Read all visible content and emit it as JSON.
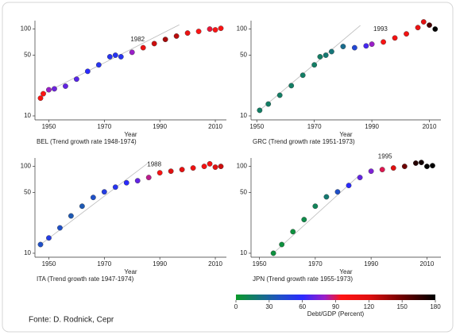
{
  "chart_data": [
    {
      "type": "scatter",
      "caption": "BEL (Trend growth rate 1948-1974)",
      "xlabel": "Year",
      "annotation_year": 1982,
      "log_y": true,
      "xlim": [
        1945,
        2014
      ],
      "xticks": [
        1950,
        1970,
        1990,
        2010
      ],
      "ylim": [
        9,
        125
      ],
      "yticks": [
        10,
        50,
        100
      ],
      "x": [
        1947,
        1948,
        1950,
        1952,
        1956,
        1960,
        1964,
        1968,
        1972,
        1974,
        1976,
        1980,
        1984,
        1988,
        1992,
        1996,
        2000,
        2004,
        2008,
        2010,
        2012
      ],
      "values": [
        16,
        18,
        20,
        20.5,
        22,
        26.5,
        32.6,
        38.7,
        48,
        50,
        48,
        54,
        61,
        68,
        76,
        83,
        90,
        94,
        100,
        98,
        102
      ],
      "debt": [
        100,
        95,
        80,
        72,
        70,
        68,
        60,
        55,
        55,
        55,
        55,
        80,
        110,
        125,
        135,
        130,
        110,
        95,
        92,
        97,
        100
      ],
      "trend": {
        "x": [
          1948,
          1997
        ],
        "values": [
          18,
          112
        ],
        "color": "#bbbbbb"
      }
    },
    {
      "type": "scatter",
      "caption": "GRC (Trend growth rate 1951-1973)",
      "xlabel": "Year",
      "annotation_year": 1993,
      "log_y": true,
      "xlim": [
        1948,
        2014
      ],
      "xticks": [
        1950,
        1970,
        1990,
        2010
      ],
      "ylim": [
        9,
        125
      ],
      "yticks": [
        10,
        50,
        100
      ],
      "x": [
        1951,
        1954,
        1958,
        1962,
        1966,
        1970,
        1972,
        1974,
        1976,
        1980,
        1984,
        1988,
        1990,
        1994,
        1998,
        2002,
        2006,
        2008,
        2010,
        2012
      ],
      "values": [
        11.6,
        13.7,
        17.3,
        22.3,
        29.4,
        38.7,
        48,
        50,
        55,
        63,
        61,
        64,
        67,
        71,
        79,
        88,
        104,
        121,
        111,
        100
      ],
      "debt": [
        15,
        15,
        15,
        15,
        15,
        15,
        15,
        18,
        20,
        25,
        45,
        65,
        80,
        100,
        105,
        105,
        110,
        115,
        160,
        180
      ],
      "trend": {
        "x": [
          1951,
          1986
        ],
        "values": [
          11.6,
          110
        ],
        "color": "#bbbbbb"
      }
    },
    {
      "type": "scatter",
      "caption": "ITA (Trend growth rate 1947-1974)",
      "xlabel": "Year",
      "annotation_year": 1988,
      "log_y": true,
      "xlim": [
        1945,
        2014
      ],
      "xticks": [
        1950,
        1970,
        1990,
        2010
      ],
      "ylim": [
        9,
        125
      ],
      "yticks": [
        10,
        50,
        100
      ],
      "x": [
        1947,
        1950,
        1954,
        1958,
        1962,
        1966,
        1970,
        1974,
        1978,
        1982,
        1986,
        1990,
        1994,
        1998,
        2002,
        2006,
        2008,
        2010,
        2012
      ],
      "values": [
        12.6,
        15,
        19.6,
        26.9,
        34.8,
        43.9,
        50.9,
        57.7,
        64.8,
        68.4,
        74.5,
        84.4,
        88,
        91.9,
        95.9,
        100,
        107,
        98,
        100
      ],
      "debt": [
        40,
        50,
        40,
        35,
        35,
        40,
        50,
        55,
        60,
        70,
        85,
        100,
        120,
        115,
        108,
        105,
        105,
        118,
        125
      ],
      "trend": {
        "x": [
          1947,
          1986
        ],
        "values": [
          12.6,
          111
        ],
        "color": "#bbbbbb"
      }
    },
    {
      "type": "scatter",
      "caption": "JPN (Trend growth rate 1955-1973)",
      "xlabel": "Year",
      "annotation_year": 1995,
      "log_y": true,
      "xlim": [
        1947,
        2015
      ],
      "xticks": [
        1950,
        1970,
        1990,
        2010
      ],
      "ylim": [
        9,
        125
      ],
      "yticks": [
        10,
        50,
        100
      ],
      "x": [
        1955,
        1958,
        1962,
        1966,
        1970,
        1974,
        1978,
        1982,
        1986,
        1990,
        1994,
        1998,
        2002,
        2006,
        2008,
        2010,
        2012
      ],
      "values": [
        10,
        12.6,
        17.7,
        24.4,
        34.8,
        44.6,
        50.9,
        60.3,
        74.5,
        88,
        91.9,
        95.9,
        100,
        109,
        111,
        100,
        102
      ],
      "debt": [
        5,
        5,
        5,
        8,
        12,
        18,
        40,
        60,
        70,
        75,
        90,
        120,
        150,
        170,
        175,
        180,
        180
      ],
      "trend": {
        "x": [
          1955,
          1985
        ],
        "values": [
          10,
          75
        ],
        "color": "#bbbbbb"
      }
    }
  ],
  "colorbar": {
    "label": "Debt/GDP (Percent)",
    "lim": [
      0,
      180
    ],
    "ticks": [
      0,
      30,
      60,
      90,
      120,
      150,
      180
    ],
    "stops": [
      {
        "value": 0,
        "color": "#0b9a2a"
      },
      {
        "value": 40,
        "color": "#1f50c8"
      },
      {
        "value": 60,
        "color": "#2a2aff"
      },
      {
        "value": 80,
        "color": "#9a1ec8"
      },
      {
        "value": 95,
        "color": "#ff1414"
      },
      {
        "value": 120,
        "color": "#e01010"
      },
      {
        "value": 150,
        "color": "#6e0000"
      },
      {
        "value": 180,
        "color": "#000000"
      }
    ]
  },
  "source": "Fonte: D. Rodnick, Cepr"
}
